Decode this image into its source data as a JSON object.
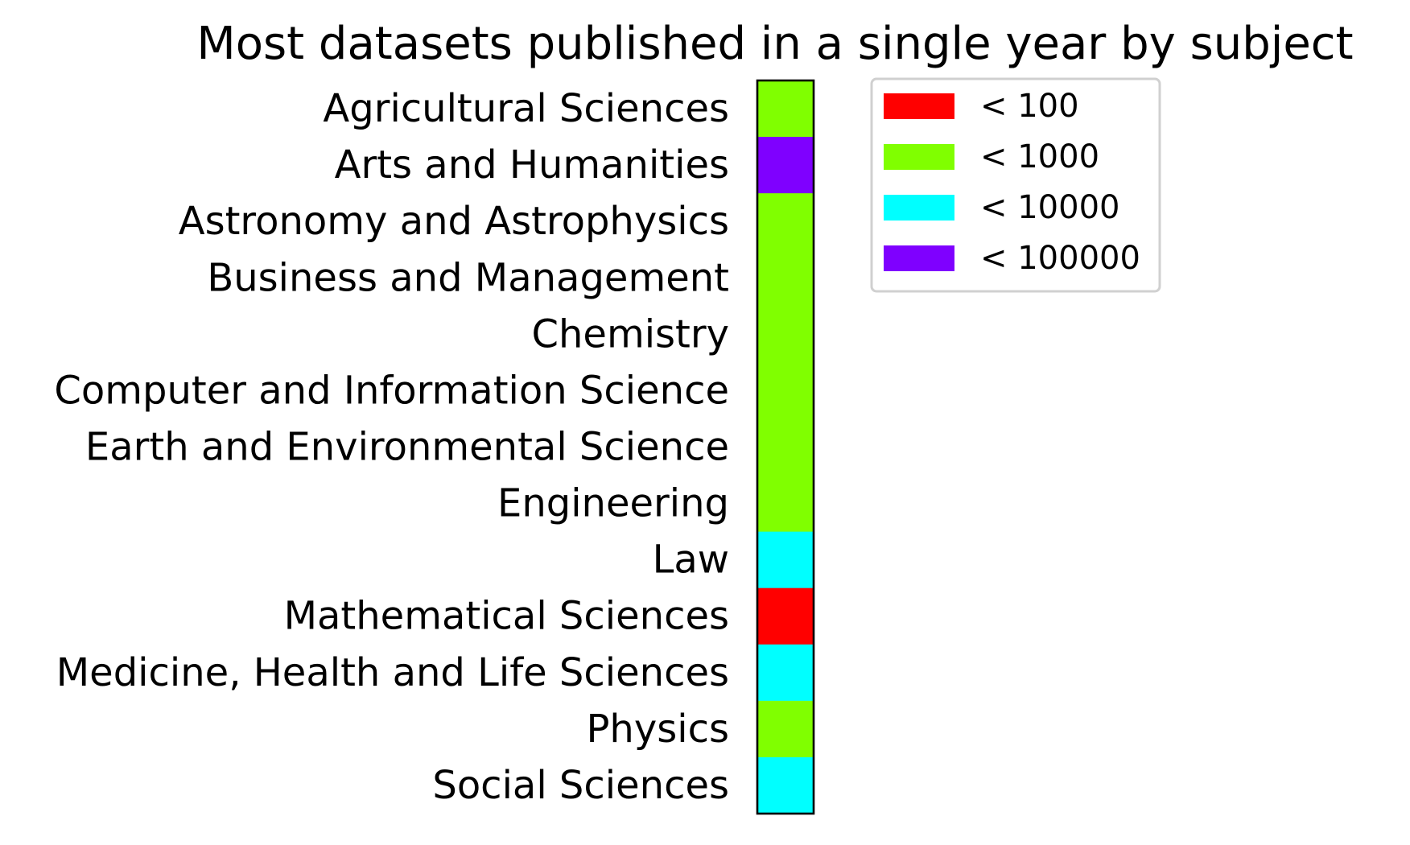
{
  "chart_data": {
    "type": "heatmap",
    "title": "Most datasets published in a single year by subject",
    "categories": [
      "Agricultural Sciences",
      "Arts and Humanities",
      "Astronomy and Astrophysics",
      "Business and Management",
      "Chemistry",
      "Computer and Information Science",
      "Earth and Environmental Science",
      "Engineering",
      "Law",
      "Mathematical Sciences",
      "Medicine, Health and Life Sciences",
      "Physics",
      "Social Sciences"
    ],
    "values": [
      "< 1000",
      "< 100000",
      "< 1000",
      "< 1000",
      "< 1000",
      "< 1000",
      "< 1000",
      "< 1000",
      "< 10000",
      "< 100",
      "< 10000",
      "< 1000",
      "< 10000"
    ],
    "legend": {
      "placement": "upper-right outside plot",
      "entries": [
        {
          "label": "< 100",
          "color": "#ff0000"
        },
        {
          "label": "< 1000",
          "color": "#80ff00"
        },
        {
          "label": "< 10000",
          "color": "#00ffff"
        },
        {
          "label": "< 100000",
          "color": "#7f00ff"
        }
      ]
    },
    "xlabel": "",
    "ylabel": "",
    "grid": false
  }
}
